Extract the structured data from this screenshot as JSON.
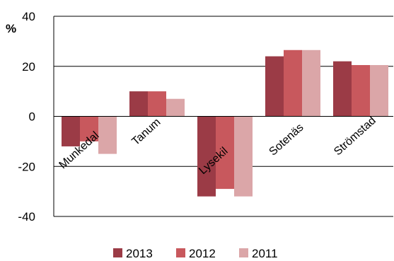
{
  "chart_data": {
    "type": "bar",
    "unit_label": "%",
    "categories": [
      "Munkedal",
      "Tanum",
      "Lysekil",
      "Sotenäs",
      "Strömstad"
    ],
    "series": [
      {
        "name": "2013",
        "color": "#9b3b46",
        "values": [
          -12,
          10,
          -32,
          24,
          22
        ]
      },
      {
        "name": "2012",
        "color": "#c8585d",
        "values": [
          -10,
          10,
          -29,
          26.5,
          20.5
        ]
      },
      {
        "name": "2011",
        "color": "#dba6a8",
        "values": [
          -15,
          7,
          -32,
          26.5,
          20.5
        ]
      }
    ],
    "ylim": [
      -40,
      40
    ],
    "yticks": [
      -40,
      -20,
      0,
      20,
      40
    ],
    "grid": true,
    "legend_position": "bottom"
  }
}
